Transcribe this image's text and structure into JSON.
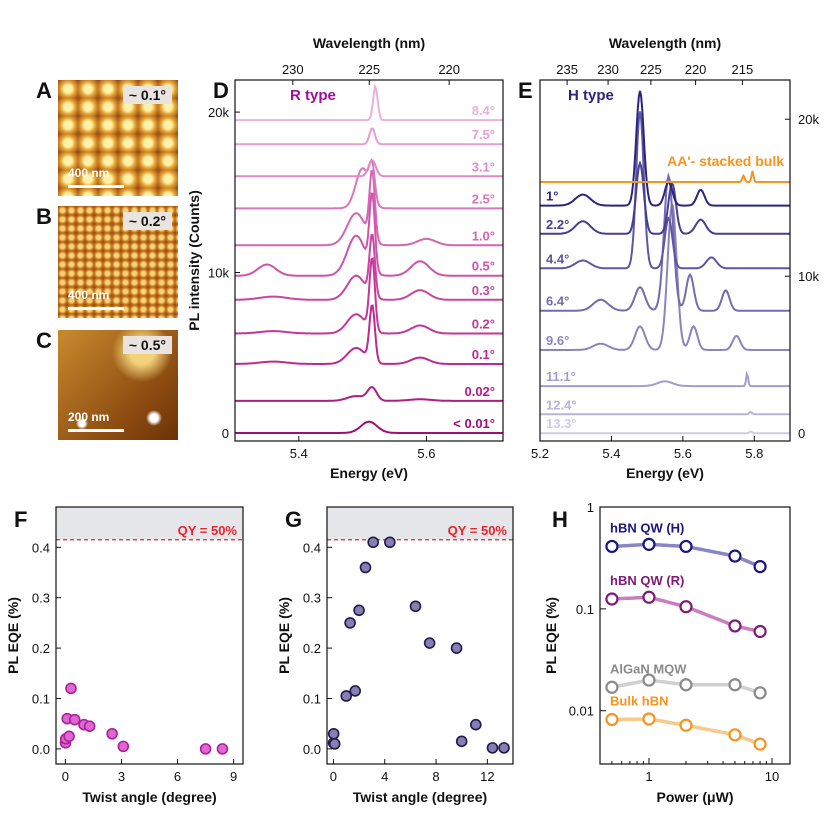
{
  "afm_panels": [
    {
      "letter": "A",
      "angle": "~ 0.1°",
      "scale": "400 nm"
    },
    {
      "letter": "B",
      "angle": "~ 0.2°",
      "scale": "400 nm"
    },
    {
      "letter": "C",
      "angle": "~ 0.5°",
      "scale": "200 nm"
    }
  ],
  "chart_data": [
    {
      "panel": "D",
      "type": "line",
      "type_label": "R type",
      "xlabel": "Energy (eV)",
      "ylabel": "PL intensity (Counts)",
      "top_label": "Wavelength (nm)",
      "xlim": [
        5.3,
        5.72
      ],
      "ylim": [
        -500,
        22000
      ],
      "x_ticks": [
        5.4,
        5.6
      ],
      "y_ticks": [
        {
          "v": 0,
          "label": "0"
        },
        {
          "v": 10000,
          "label": "10k"
        },
        {
          "v": 20000,
          "label": "20k"
        }
      ],
      "top_ticks": [
        230,
        225,
        220
      ],
      "series": [
        {
          "name": "< 0.01°",
          "offset": 0,
          "color": "#a10d78",
          "peaks": [
            [
              5.51,
              700,
              0.018
            ]
          ]
        },
        {
          "name": "0.02°",
          "offset": 2000,
          "color": "#b01c85",
          "peaks": [
            [
              5.49,
              300,
              0.02
            ],
            [
              5.515,
              800,
              0.01
            ],
            [
              5.59,
              100,
              0.025
            ]
          ]
        },
        {
          "name": "0.1°",
          "offset": 4300,
          "color": "#bc2a90",
          "peaks": [
            [
              5.36,
              150,
              0.03
            ],
            [
              5.49,
              1000,
              0.02
            ],
            [
              5.515,
              3500,
              0.006
            ],
            [
              5.59,
              400,
              0.02
            ]
          ]
        },
        {
          "name": "0.2°",
          "offset": 6200,
          "color": "#c2379a",
          "peaks": [
            [
              5.36,
              150,
              0.03
            ],
            [
              5.49,
              1200,
              0.02
            ],
            [
              5.515,
              4500,
              0.006
            ],
            [
              5.59,
              500,
              0.02
            ]
          ]
        },
        {
          "name": "0.3°",
          "offset": 8300,
          "color": "#c845a2",
          "peaks": [
            [
              5.36,
              200,
              0.03
            ],
            [
              5.49,
              1500,
              0.02
            ],
            [
              5.515,
              3800,
              0.006
            ],
            [
              5.59,
              600,
              0.02
            ]
          ]
        },
        {
          "name": "0.5°",
          "offset": 9800,
          "color": "#cf53ab",
          "peaks": [
            [
              5.35,
              700,
              0.02
            ],
            [
              5.49,
              2500,
              0.02
            ],
            [
              5.515,
              4700,
              0.006
            ],
            [
              5.59,
              900,
              0.02
            ]
          ]
        },
        {
          "name": "1.0°",
          "offset": 11700,
          "color": "#d464b4",
          "peaks": [
            [
              5.49,
              2000,
              0.02
            ],
            [
              5.515,
              4300,
              0.006
            ],
            [
              5.6,
              400,
              0.02
            ]
          ]
        },
        {
          "name": "2.5°",
          "offset": 14000,
          "color": "#da76bd",
          "peaks": [
            [
              5.5,
              2500,
              0.015
            ],
            [
              5.515,
              2000,
              0.006
            ]
          ]
        },
        {
          "name": "3.1°",
          "offset": 16000,
          "color": "#df8ac7",
          "peaks": [
            [
              5.515,
              1000,
              0.008
            ]
          ]
        },
        {
          "name": "7.5°",
          "offset": 18000,
          "color": "#e59ecf",
          "peaks": [
            [
              5.515,
              1000,
              0.006
            ]
          ]
        },
        {
          "name": "8.4°",
          "offset": 19500,
          "color": "#ebb2d9",
          "peaks": [
            [
              5.52,
              2100,
              0.005
            ]
          ]
        }
      ]
    },
    {
      "panel": "E",
      "type": "line",
      "type_label": "H type",
      "xlabel": "Energy (eV)",
      "top_label": "Wavelength (nm)",
      "xlim": [
        5.2,
        5.9
      ],
      "ylim": [
        -500,
        22500
      ],
      "x_ticks": [
        5.2,
        5.4,
        5.6,
        5.8
      ],
      "y_ticks": [
        {
          "v": 0,
          "label": "0"
        },
        {
          "v": 10000,
          "label": "10k"
        },
        {
          "v": 20000,
          "label": "20k"
        }
      ],
      "top_ticks": [
        235,
        230,
        225,
        220,
        215
      ],
      "series": [
        {
          "name": "13.3°",
          "offset": 0,
          "color": "#cfcbe4",
          "peaks": [
            [
              5.79,
              100,
              0.005
            ]
          ]
        },
        {
          "name": "12.4°",
          "offset": 1200,
          "color": "#b9b3d7",
          "peaks": [
            [
              5.79,
              150,
              0.005
            ]
          ]
        },
        {
          "name": "11.1°",
          "offset": 3000,
          "color": "#a49dcb",
          "peaks": [
            [
              5.55,
              300,
              0.03
            ],
            [
              5.78,
              800,
              0.004
            ]
          ]
        },
        {
          "name": "9.6°",
          "offset": 5300,
          "color": "#8c84bd",
          "peaks": [
            [
              5.37,
              400,
              0.03
            ],
            [
              5.48,
              1500,
              0.02
            ],
            [
              5.57,
              9300,
              0.018
            ],
            [
              5.63,
              1500,
              0.015
            ],
            [
              5.75,
              900,
              0.015
            ]
          ]
        },
        {
          "name": "6.4°",
          "offset": 7800,
          "color": "#736bb0",
          "peaks": [
            [
              5.37,
              700,
              0.03
            ],
            [
              5.48,
              1500,
              0.02
            ],
            [
              5.56,
              8600,
              0.018
            ],
            [
              5.62,
              2300,
              0.015
            ],
            [
              5.72,
              1300,
              0.015
            ]
          ]
        },
        {
          "name": "4.4°",
          "offset": 10500,
          "color": "#5e56a2",
          "peaks": [
            [
              5.32,
              500,
              0.03
            ],
            [
              5.48,
              10000,
              0.015
            ],
            [
              5.56,
              3200,
              0.015
            ],
            [
              5.68,
              700,
              0.02
            ]
          ]
        },
        {
          "name": "2.2°",
          "offset": 12700,
          "color": "#463e91",
          "peaks": [
            [
              5.32,
              800,
              0.03
            ],
            [
              5.48,
              4500,
              0.015
            ],
            [
              5.57,
              3200,
              0.015
            ],
            [
              5.65,
              900,
              0.02
            ]
          ]
        },
        {
          "name": "1°",
          "offset": 14500,
          "color": "#2b2480",
          "peaks": [
            [
              5.32,
              700,
              0.03
            ],
            [
              5.48,
              7300,
              0.015
            ],
            [
              5.56,
              1500,
              0.015
            ],
            [
              5.65,
              1000,
              0.015
            ]
          ]
        }
      ],
      "bulk": {
        "name": "AA'- stacked bulk",
        "offset": 16000,
        "color": "#f7931e",
        "peaks": [
          [
            5.77,
            400,
            0.005
          ],
          [
            5.795,
            700,
            0.004
          ]
        ]
      }
    },
    {
      "panel": "F",
      "type": "scatter",
      "xlabel": "Twist angle (degree)",
      "ylabel": "PL EQE (%)",
      "xlim": [
        -0.5,
        9.5
      ],
      "ylim": [
        -0.03,
        0.48
      ],
      "x_ticks": [
        0,
        3,
        6,
        9
      ],
      "y_ticks": [
        0,
        0.1,
        0.2,
        0.3,
        0.4
      ],
      "qy_line": 0.415,
      "qy_label": "QY = 50%",
      "marker_fill": "#e066d1",
      "marker_edge": "#a8239a",
      "x": [
        0.01,
        0.02,
        0.1,
        0.2,
        0.3,
        0.5,
        1.0,
        1.3,
        2.5,
        3.1,
        7.5,
        8.4
      ],
      "y": [
        0.012,
        0.02,
        0.06,
        0.025,
        0.12,
        0.058,
        0.048,
        0.045,
        0.03,
        0.005,
        0.0,
        0.0
      ]
    },
    {
      "panel": "G",
      "type": "scatter",
      "xlabel": "Twist angle (degree)",
      "ylabel": "PL EQE (%)",
      "xlim": [
        -0.5,
        14
      ],
      "ylim": [
        -0.03,
        0.48
      ],
      "x_ticks": [
        0,
        4,
        8,
        12
      ],
      "y_ticks": [
        0,
        0.1,
        0.2,
        0.3,
        0.4
      ],
      "qy_line": 0.415,
      "qy_label": "QY = 50%",
      "marker_fill": "#8580b0",
      "marker_edge": "#1f1a50",
      "x": [
        0.01,
        0.02,
        0.1,
        1.0,
        1.3,
        1.7,
        2.0,
        2.5,
        3.1,
        4.4,
        6.4,
        7.5,
        9.6,
        10.0,
        11.1,
        12.4,
        13.3
      ],
      "y": [
        0.012,
        0.03,
        0.01,
        0.105,
        0.25,
        0.115,
        0.275,
        0.36,
        0.41,
        0.41,
        0.283,
        0.21,
        0.2,
        0.015,
        0.048,
        0.002,
        0.002
      ]
    },
    {
      "panel": "H",
      "type": "line",
      "xlabel": "Power (μW)",
      "ylabel": "PL EQE (%)",
      "xlim": [
        0.4,
        14
      ],
      "ylim": [
        0.003,
        1
      ],
      "x_ticks": [
        {
          "v": 1,
          "label": "1"
        },
        {
          "v": 10,
          "label": "10"
        }
      ],
      "y_ticks": [
        {
          "v": 0.01,
          "label": "0.01"
        },
        {
          "v": 0.1,
          "label": "0.1"
        },
        {
          "v": 1,
          "label": "1"
        }
      ],
      "x": [
        0.5,
        1,
        2,
        5,
        8
      ],
      "series": [
        {
          "name": "hBN QW (H)",
          "color": "#1c1580",
          "line": "#8a86c6",
          "y": [
            0.41,
            0.43,
            0.41,
            0.33,
            0.26
          ]
        },
        {
          "name": "hBN QW (R)",
          "color": "#801a78",
          "line": "#c77fc0",
          "y": [
            0.125,
            0.13,
            0.105,
            0.068,
            0.06
          ]
        },
        {
          "name": "AlGaN MQW",
          "color": "#8a8a8a",
          "line": "#d0d0d0",
          "y": [
            0.017,
            0.02,
            0.018,
            0.018,
            0.015
          ]
        },
        {
          "name": "Bulk hBN",
          "color": "#f7931e",
          "line": "#f8c98a",
          "y": [
            0.0082,
            0.0083,
            0.0072,
            0.0058,
            0.0047
          ]
        }
      ]
    }
  ]
}
